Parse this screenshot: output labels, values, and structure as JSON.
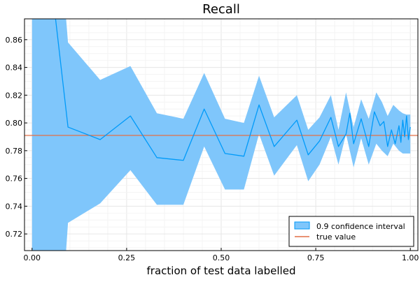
{
  "chart_data": {
    "type": "line",
    "title": "Recall",
    "xlabel": "fraction of test data labelled",
    "ylabel": "",
    "xlim": [
      -0.02,
      1.02
    ],
    "ylim": [
      0.708,
      0.875
    ],
    "x_ticks": [
      0.0,
      0.25,
      0.5,
      0.75,
      1.0
    ],
    "x_tick_labels": [
      "0.00",
      "0.25",
      "0.50",
      "0.75",
      "1.00"
    ],
    "y_ticks": [
      0.72,
      0.74,
      0.76,
      0.78,
      0.8,
      0.82,
      0.84,
      0.86
    ],
    "y_tick_labels": [
      "0.72",
      "0.74",
      "0.76",
      "0.78",
      "0.80",
      "0.82",
      "0.84",
      "0.86"
    ],
    "grid": true,
    "legend_position": "bottom-right",
    "series": [
      {
        "name": "0.9 confidence interval",
        "kind": "band",
        "color": "#7fc6fb",
        "x": [
          0.0,
          0.06,
          0.09,
          0.095,
          0.18,
          0.26,
          0.33,
          0.4,
          0.455,
          0.51,
          0.56,
          0.6,
          0.64,
          0.7,
          0.73,
          0.76,
          0.79,
          0.81,
          0.83,
          0.85,
          0.87,
          0.89,
          0.91,
          0.925,
          0.94,
          0.955,
          0.97,
          0.98,
          0.99,
          1.0
        ],
        "upper": [
          0.875,
          0.875,
          0.875,
          0.858,
          0.831,
          0.841,
          0.807,
          0.803,
          0.836,
          0.803,
          0.8,
          0.834,
          0.804,
          0.82,
          0.795,
          0.804,
          0.82,
          0.795,
          0.822,
          0.797,
          0.817,
          0.803,
          0.822,
          0.815,
          0.805,
          0.813,
          0.809,
          0.807,
          0.806,
          0.806
        ],
        "lower": [
          0.708,
          0.708,
          0.708,
          0.728,
          0.742,
          0.766,
          0.741,
          0.741,
          0.783,
          0.752,
          0.752,
          0.792,
          0.762,
          0.784,
          0.758,
          0.77,
          0.79,
          0.77,
          0.792,
          0.768,
          0.789,
          0.77,
          0.785,
          0.78,
          0.776,
          0.785,
          0.78,
          0.778,
          0.778,
          0.778
        ]
      },
      {
        "name": "",
        "kind": "line",
        "color": "#009af9",
        "x": [
          0.0,
          0.06,
          0.095,
          0.18,
          0.26,
          0.33,
          0.4,
          0.455,
          0.51,
          0.56,
          0.6,
          0.64,
          0.7,
          0.73,
          0.76,
          0.79,
          0.81,
          0.83,
          0.84,
          0.85,
          0.87,
          0.89,
          0.905,
          0.92,
          0.93,
          0.94,
          0.95,
          0.96,
          0.97,
          0.975,
          0.98,
          0.985,
          0.99,
          0.995,
          1.0
        ],
        "y": [
          0.96,
          0.88,
          0.797,
          0.788,
          0.805,
          0.775,
          0.773,
          0.81,
          0.778,
          0.776,
          0.813,
          0.783,
          0.802,
          0.777,
          0.787,
          0.804,
          0.783,
          0.792,
          0.807,
          0.785,
          0.803,
          0.783,
          0.808,
          0.798,
          0.801,
          0.783,
          0.795,
          0.785,
          0.798,
          0.786,
          0.802,
          0.79,
          0.805,
          0.788,
          0.797
        ]
      },
      {
        "name": "true value",
        "kind": "hline",
        "color": "#e26f46",
        "y": 0.791
      }
    ]
  },
  "legend": {
    "items": [
      {
        "label": "0.9 confidence interval",
        "swatch": "band",
        "fill": "#7fc6fb",
        "stroke": "#009af9"
      },
      {
        "label": "true value",
        "swatch": "line",
        "stroke": "#e26f46"
      }
    ]
  }
}
